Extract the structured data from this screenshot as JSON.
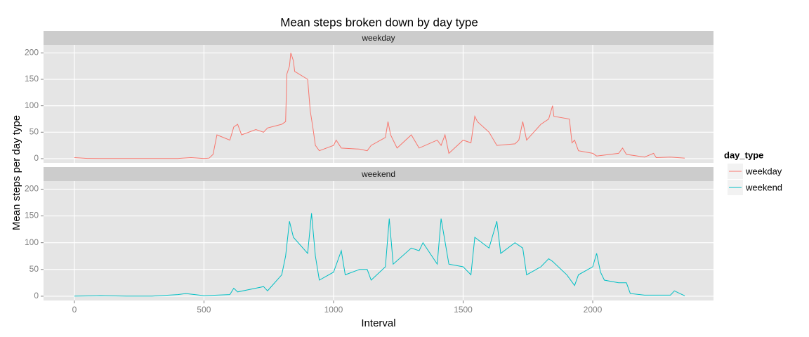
{
  "chart_data": {
    "type": "line",
    "facet": true,
    "title": "Mean steps broken down by day type",
    "x_label": "Interval",
    "y_label": "Mean steps per day type",
    "legend_title": "day_type",
    "xlim": [
      -119,
      2466
    ],
    "xticks": [
      0,
      500,
      1000,
      1500,
      2000
    ],
    "ylim": [
      -8,
      215
    ],
    "yticks": [
      0,
      50,
      100,
      150,
      200
    ],
    "grid": true,
    "series": [
      {
        "name": "weekday",
        "color": "#F8766D",
        "x": [
          0,
          50,
          100,
          200,
          300,
          400,
          450,
          500,
          520,
          535,
          550,
          600,
          615,
          630,
          645,
          700,
          730,
          745,
          800,
          815,
          820,
          830,
          835,
          845,
          850,
          900,
          910,
          920,
          930,
          945,
          1000,
          1010,
          1030,
          1100,
          1130,
          1145,
          1200,
          1210,
          1220,
          1245,
          1300,
          1330,
          1400,
          1415,
          1430,
          1445,
          1500,
          1530,
          1545,
          1555,
          1600,
          1630,
          1700,
          1715,
          1730,
          1745,
          1800,
          1830,
          1845,
          1850,
          1910,
          1920,
          1930,
          1945,
          2000,
          2015,
          2100,
          2115,
          2130,
          2200,
          2235,
          2245,
          2300,
          2355
        ],
        "values": [
          2,
          0.5,
          0.3,
          0.4,
          0.2,
          0.3,
          2,
          0.3,
          1,
          8,
          45,
          35,
          60,
          65,
          45,
          55,
          50,
          58,
          65,
          70,
          160,
          175,
          200,
          185,
          165,
          150,
          90,
          60,
          25,
          15,
          25,
          35,
          20,
          18,
          15,
          25,
          40,
          70,
          45,
          20,
          45,
          20,
          35,
          25,
          45,
          10,
          35,
          30,
          80,
          70,
          50,
          25,
          28,
          35,
          70,
          35,
          65,
          75,
          100,
          80,
          75,
          30,
          35,
          15,
          10,
          5,
          10,
          20,
          8,
          3,
          10,
          2,
          3,
          1
        ]
      },
      {
        "name": "weekend",
        "color": "#00BFC4",
        "x": [
          0,
          50,
          100,
          200,
          300,
          400,
          430,
          500,
          600,
          615,
          630,
          700,
          730,
          745,
          800,
          815,
          830,
          845,
          900,
          915,
          930,
          945,
          1000,
          1030,
          1045,
          1100,
          1130,
          1145,
          1200,
          1215,
          1230,
          1300,
          1330,
          1345,
          1400,
          1415,
          1445,
          1500,
          1530,
          1545,
          1600,
          1630,
          1645,
          1700,
          1730,
          1745,
          1800,
          1830,
          1845,
          1900,
          1930,
          1945,
          2000,
          2015,
          2030,
          2045,
          2100,
          2130,
          2145,
          2200,
          2300,
          2315,
          2345,
          2355
        ],
        "values": [
          0.3,
          0.5,
          1,
          0.2,
          0.3,
          3,
          5,
          1,
          3,
          15,
          8,
          15,
          18,
          10,
          40,
          75,
          140,
          110,
          80,
          155,
          75,
          30,
          45,
          85,
          40,
          50,
          50,
          30,
          55,
          145,
          60,
          90,
          85,
          100,
          60,
          145,
          60,
          55,
          40,
          110,
          90,
          140,
          80,
          100,
          90,
          40,
          55,
          70,
          65,
          40,
          20,
          40,
          55,
          80,
          45,
          30,
          25,
          25,
          5,
          2,
          2,
          10,
          3,
          1
        ]
      }
    ]
  }
}
